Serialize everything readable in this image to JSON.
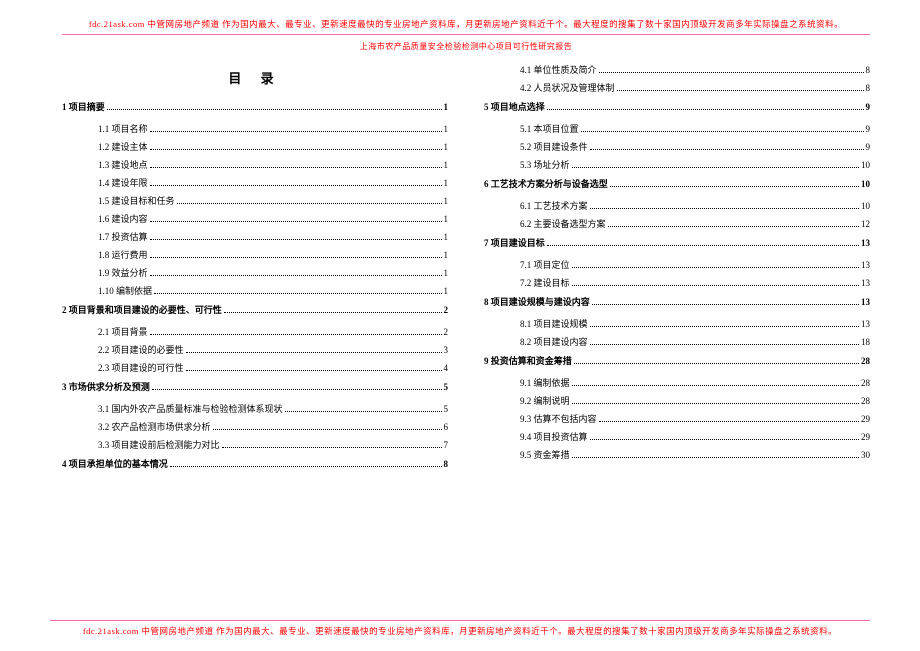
{
  "banner_top": "fdc.21ask.com 中管网房地产频道 作为国内最大、最专业、更新速度最快的专业房地产资料库，月更新房地产资料近千个。最大程度的搜集了数十家国内顶级开发商多年实际操盘之系统资料。",
  "subtitle": "上海市农产品质量安全检验检测中心项目可行性研究报告",
  "toc_title": "目 录",
  "left": [
    {
      "level": 1,
      "label": "1 项目摘要",
      "page": "1"
    },
    {
      "level": 2,
      "label": "1.1  项目名称",
      "page": "1"
    },
    {
      "level": 2,
      "label": "1.2  建设主体",
      "page": "1"
    },
    {
      "level": 2,
      "label": "1.3  建设地点",
      "page": "1"
    },
    {
      "level": 2,
      "label": "1.4  建设年限",
      "page": "1"
    },
    {
      "level": 2,
      "label": "1.5  建设目标和任务",
      "page": "1"
    },
    {
      "level": 2,
      "label": "1.6  建设内容",
      "page": "1"
    },
    {
      "level": 2,
      "label": "1.7  投资估算",
      "page": "1"
    },
    {
      "level": 2,
      "label": "1.8  运行费用",
      "page": "1"
    },
    {
      "level": 2,
      "label": "1.9  效益分析",
      "page": "1"
    },
    {
      "level": 2,
      "label": "1.10  编制依据",
      "page": "1"
    },
    {
      "level": 1,
      "label": "2  项目背景和项目建设的必要性、可行性",
      "page": "2"
    },
    {
      "level": 2,
      "label": "2.1  项目背景",
      "page": "2"
    },
    {
      "level": 2,
      "label": "2.2  项目建设的必要性",
      "page": "3"
    },
    {
      "level": 2,
      "label": "2.3  项目建设的可行性",
      "page": "4"
    },
    {
      "level": 1,
      "label": "3  市场供求分析及预测",
      "page": "5"
    },
    {
      "level": 2,
      "label": "3.1  国内外农产品质量标准与检验检测体系现状",
      "page": "5"
    },
    {
      "level": 2,
      "label": "3.2  农产品检测市场供求分析",
      "page": "6"
    },
    {
      "level": 2,
      "label": "3.3  项目建设前后检测能力对比",
      "page": "7"
    },
    {
      "level": 1,
      "label": "4 项目承担单位的基本情况",
      "page": "8"
    }
  ],
  "right": [
    {
      "level": 2,
      "label": "4.1 单位性质及简介",
      "page": "8"
    },
    {
      "level": 2,
      "label": "4.2 人员状况及管理体制",
      "page": "8"
    },
    {
      "level": 1,
      "label": "5 项目地点选择",
      "page": "9"
    },
    {
      "level": 2,
      "label": "5.1  本项目位置",
      "page": "9"
    },
    {
      "level": 2,
      "label": "5.2  项目建设条件",
      "page": "9"
    },
    {
      "level": 2,
      "label": "5.3  场址分析",
      "page": "10"
    },
    {
      "level": 1,
      "label": "6 工艺技术方案分析与设备选型",
      "page": "10"
    },
    {
      "level": 2,
      "label": "6.1  工艺技术方案",
      "page": "10"
    },
    {
      "level": 2,
      "label": "6.2  主要设备选型方案",
      "page": "12"
    },
    {
      "level": 1,
      "label": "7  项目建设目标",
      "page": "13"
    },
    {
      "level": 2,
      "label": "7.1 项目定位",
      "page": "13"
    },
    {
      "level": 2,
      "label": "7.2  建设目标",
      "page": "13"
    },
    {
      "level": 1,
      "label": "8  项目建设规模与建设内容",
      "page": "13"
    },
    {
      "level": 2,
      "label": "8.1 项目建设规模",
      "page": "13"
    },
    {
      "level": 2,
      "label": "8.2  项目建设内容",
      "page": "18"
    },
    {
      "level": 1,
      "label": "9  投资估算和资金筹措",
      "page": "28"
    },
    {
      "level": 2,
      "label": "9.1  编制依据",
      "page": "28"
    },
    {
      "level": 2,
      "label": "9.2  编制说明",
      "page": "28"
    },
    {
      "level": 2,
      "label": "9.3  估算不包括内容",
      "page": "29"
    },
    {
      "level": 2,
      "label": "9.4  项目投资估算",
      "page": "29"
    },
    {
      "level": 2,
      "label": "9.5  资金筹措",
      "page": "30"
    }
  ],
  "banner_bot": "fdc.21ask.com 中管网房地产频道 作为国内最大、最专业、更新速度最快的专业房地产资料库，月更新房地产资料近千个。最大程度的搜集了数十家国内顶级开发商多年实际操盘之系统资料。"
}
